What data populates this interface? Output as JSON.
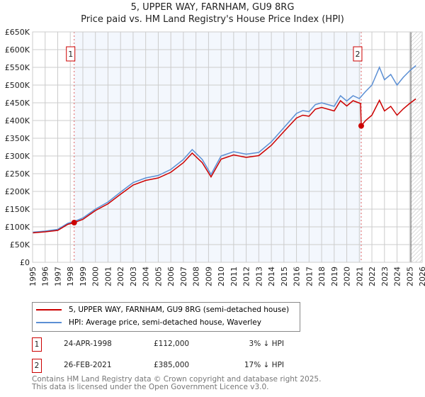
{
  "chart_data": {
    "type": "line",
    "title": "5, UPPER WAY, FARNHAM, GU9 8RG",
    "subtitle": "Price paid vs. HM Land Registry's House Price Index (HPI)",
    "xlim": [
      1995,
      2026
    ],
    "ylim": [
      0,
      650000
    ],
    "y_ticks": [
      0,
      50000,
      100000,
      150000,
      200000,
      250000,
      300000,
      350000,
      400000,
      450000,
      500000,
      550000,
      600000,
      650000
    ],
    "y_tick_labels": [
      "£0",
      "£50K",
      "£100K",
      "£150K",
      "£200K",
      "£250K",
      "£300K",
      "£350K",
      "£400K",
      "£450K",
      "£500K",
      "£550K",
      "£600K",
      "£650K"
    ],
    "x_tick_labels": [
      "1995",
      "1996",
      "1997",
      "1998",
      "1999",
      "2000",
      "2001",
      "2002",
      "2003",
      "2004",
      "2005",
      "2006",
      "2007",
      "2008",
      "2009",
      "2010",
      "2011",
      "2012",
      "2013",
      "2014",
      "2015",
      "2016",
      "2017",
      "2018",
      "2019",
      "2020",
      "2021",
      "2022",
      "2023",
      "2024",
      "2025",
      "2026"
    ],
    "grid": true,
    "series": [
      {
        "name": "HPI: Average price, semi-detached house, Waverley",
        "color": "#5b8fd4",
        "x": [
          1995,
          1996,
          1997,
          1997.8,
          1998.3,
          1999,
          2000,
          2001,
          2002,
          2003,
          2004,
          2005,
          2006,
          2007,
          2007.7,
          2008.5,
          2009.2,
          2010,
          2011,
          2012,
          2013,
          2014,
          2015,
          2016,
          2016.5,
          2017,
          2017.5,
          2018,
          2019,
          2019.5,
          2020,
          2020.5,
          2021,
          2021.5,
          2022,
          2022.6,
          2023,
          2023.5,
          2024,
          2024.5,
          2025,
          2025.5
        ],
        "y": [
          85000,
          88000,
          93000,
          110000,
          115000,
          125000,
          150000,
          170000,
          198000,
          225000,
          238000,
          245000,
          262000,
          290000,
          318000,
          290000,
          248000,
          300000,
          312000,
          305000,
          310000,
          340000,
          380000,
          420000,
          428000,
          425000,
          445000,
          450000,
          440000,
          470000,
          455000,
          470000,
          462000,
          482000,
          500000,
          550000,
          515000,
          530000,
          500000,
          522000,
          540000,
          555000
        ]
      },
      {
        "name": "5, UPPER WAY, FARNHAM, GU9 8RG (semi-detached house)",
        "color": "#cc0000",
        "x": [
          1995,
          1996,
          1997,
          1997.8,
          1998.3,
          1999,
          2000,
          2001,
          2002,
          2003,
          2004,
          2005,
          2006,
          2007,
          2007.7,
          2008.5,
          2009.2,
          2010,
          2011,
          2012,
          2013,
          2014,
          2015,
          2016,
          2016.5,
          2017,
          2017.5,
          2018,
          2019,
          2019.5,
          2020,
          2020.5,
          2021.1,
          2021.15,
          2021.5,
          2022,
          2022.6,
          2023,
          2023.5,
          2024,
          2024.5,
          2025,
          2025.5
        ],
        "y": [
          83000,
          86000,
          90000,
          107000,
          112000,
          121000,
          146000,
          165000,
          192000,
          218000,
          231000,
          238000,
          254000,
          281000,
          308000,
          281000,
          241000,
          291000,
          303000,
          296000,
          301000,
          330000,
          369000,
          407000,
          415000,
          412000,
          432000,
          437000,
          427000,
          456000,
          441000,
          456000,
          448000,
          385000,
          400000,
          415000,
          457000,
          427000,
          440000,
          415000,
          433000,
          448000,
          461000
        ]
      }
    ],
    "sales": [
      {
        "label": "1",
        "x": 1998.31,
        "y": 112000
      },
      {
        "label": "2",
        "x": 2021.15,
        "y": 385000
      }
    ]
  },
  "legend": [
    {
      "label": "5, UPPER WAY, FARNHAM, GU9 8RG (semi-detached house)",
      "color": "#cc0000"
    },
    {
      "label": "HPI: Average price, semi-detached house, Waverley",
      "color": "#5b8fd4"
    }
  ],
  "transactions": [
    {
      "num": "1",
      "date": "24-APR-1998",
      "price": "£112,000",
      "hpi": "3% ↓ HPI"
    },
    {
      "num": "2",
      "date": "26-FEB-2021",
      "price": "£385,000",
      "hpi": "17% ↓ HPI"
    }
  ],
  "footer": [
    "Contains HM Land Registry data © Crown copyright and database right 2025.",
    "This data is licensed under the Open Government Licence v3.0."
  ]
}
